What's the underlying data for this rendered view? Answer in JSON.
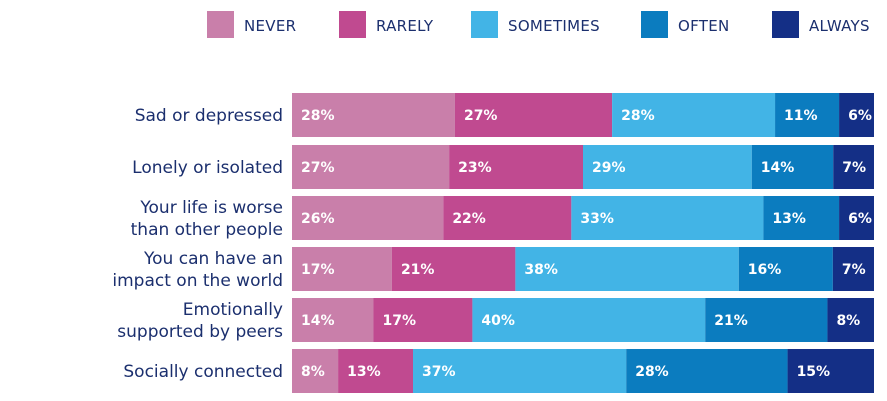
{
  "chart_data": {
    "type": "bar",
    "orientation": "horizontal",
    "stacked": true,
    "value_unit": "%",
    "legend_position": "top-right",
    "categories": [
      [
        "Sad or depressed"
      ],
      [
        "Lonely or isolated"
      ],
      [
        "Your life is worse",
        "than other people"
      ],
      [
        "You can have an",
        "impact on the world"
      ],
      [
        "Emotionally",
        "supported by peers"
      ],
      [
        "Socially connected"
      ]
    ],
    "series": [
      {
        "name": "NEVER",
        "color": "#c97faa",
        "values": [
          28,
          27,
          26,
          17,
          14,
          8
        ]
      },
      {
        "name": "RARELY",
        "color": "#c04a90",
        "values": [
          27,
          23,
          22,
          21,
          17,
          13
        ]
      },
      {
        "name": "SOMETIMES",
        "color": "#42b4e6",
        "values": [
          28,
          29,
          33,
          38,
          40,
          37
        ]
      },
      {
        "name": "OFTEN",
        "color": "#0b7cbf",
        "values": [
          11,
          14,
          13,
          16,
          21,
          28
        ]
      },
      {
        "name": "ALWAYS",
        "color": "#142f86",
        "values": [
          6,
          7,
          6,
          7,
          8,
          15
        ]
      }
    ]
  }
}
